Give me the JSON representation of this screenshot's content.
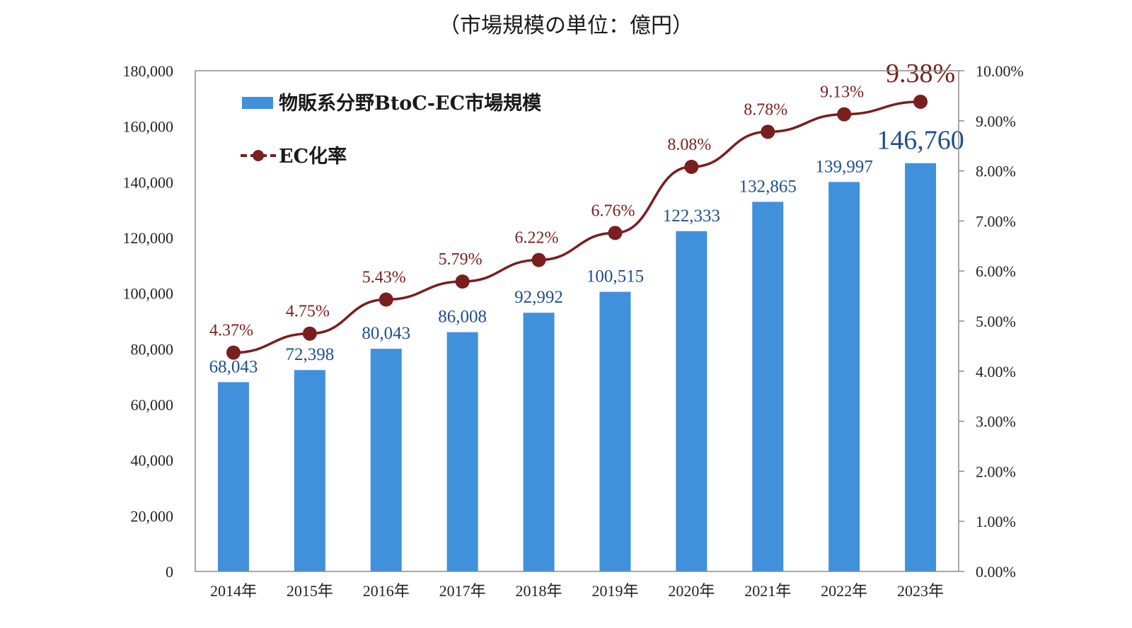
{
  "unit_title": "（市場規模の単位：億円）",
  "chart_data": {
    "type": "bar+line",
    "categories": [
      "2014年",
      "2015年",
      "2016年",
      "2017年",
      "2018年",
      "2019年",
      "2020年",
      "2021年",
      "2022年",
      "2023年"
    ],
    "series": [
      {
        "name": "物販系分野BtoC-EC市場規模",
        "type": "bar",
        "axis": "left",
        "color": "#4190dc",
        "values": [
          68043,
          72398,
          80043,
          86008,
          92992,
          100515,
          122333,
          132865,
          139997,
          146760
        ],
        "labels": [
          "68,043",
          "72,398",
          "80,043",
          "86,008",
          "92,992",
          "100,515",
          "122,333",
          "132,865",
          "139,997",
          "146,760"
        ]
      },
      {
        "name": "EC化率",
        "type": "line",
        "axis": "right",
        "color": "#7a1e1e",
        "values": [
          4.37,
          4.75,
          5.43,
          5.79,
          6.22,
          6.76,
          8.08,
          8.78,
          9.13,
          9.38
        ],
        "labels": [
          "4.37%",
          "4.75%",
          "5.43%",
          "5.79%",
          "6.22%",
          "6.76%",
          "8.08%",
          "8.78%",
          "9.13%",
          "9.38%"
        ]
      }
    ],
    "y_left": {
      "min": 0,
      "max": 180000,
      "ticks": [
        "0",
        "20,000",
        "40,000",
        "60,000",
        "80,000",
        "100,000",
        "120,000",
        "140,000",
        "160,000",
        "180,000"
      ]
    },
    "y_right": {
      "min": 0,
      "max": 10,
      "ticks": [
        "0.00%",
        "1.00%",
        "2.00%",
        "3.00%",
        "4.00%",
        "5.00%",
        "6.00%",
        "7.00%",
        "8.00%",
        "9.00%",
        "10.00%"
      ]
    },
    "legend": {
      "position": "top-left",
      "bar_label": "物販系分野BtoC-EC市場規模",
      "line_label": "EC化率"
    }
  }
}
